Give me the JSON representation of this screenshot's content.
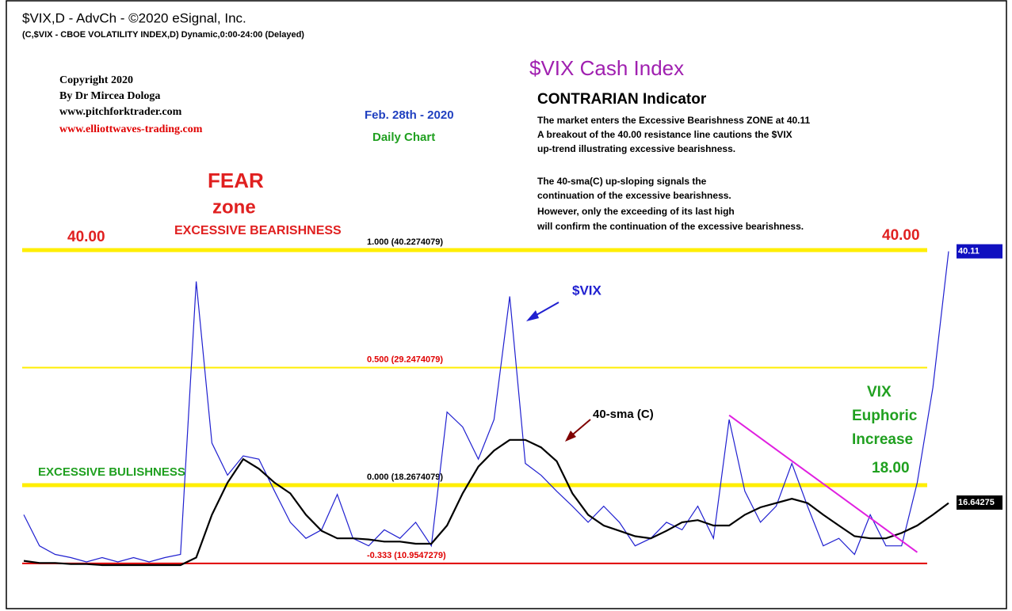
{
  "chart_data": {
    "type": "line",
    "header": "$VIX,D - AdvCh - ©2020 eSignal, Inc.",
    "subheader": "(C,$VIX - CBOE VOLATILITY INDEX,D) Dynamic,0:00-24:00 (Delayed)",
    "copyright": [
      "Copyright 2020",
      "By Dr Mircea Dologa",
      "www.pitchforktrader.com",
      "www.elliottwaves-trading.com"
    ],
    "title": "$VIX Cash Index",
    "subtitle": "CONTRARIAN Indicator",
    "date": "Feb. 28th - 2020",
    "timeframe": "Daily Chart",
    "notes": [
      "The market enters the Excessive Bearishness ZONE at 40.11",
      "A breakout of the 40.00 resistance line cautions the $VIX",
      "up-trend illustrating excessive bearishness.",
      "The 40-sma(C) up-sloping signals the",
      "continuation of the excessive bearishness.",
      "However, only the exceeding of its last high",
      "will confirm the continuation of the excessive bearishness."
    ],
    "annotations": {
      "fear": "FEAR",
      "zone": "zone",
      "bear": "EXCESSIVE BEARISHNESS",
      "level_left": "40.00",
      "level_right": "40.00",
      "vix": "$VIX",
      "sma": "40-sma (C)",
      "euph1": "VIX",
      "euph2": "Euphoric",
      "euph3": "Increase",
      "level18": "18.00",
      "bull": "EXCESSIVE BULISHNESS"
    },
    "ylim": [
      9.5,
      42
    ],
    "levels": [
      {
        "value": 40.2274079,
        "label": "1.000 (40.2274079)",
        "color": "#ffee00",
        "label_color": "#000000",
        "width": 5
      },
      {
        "value": 29.2474079,
        "label": "0.500 (29.2474079)",
        "color": "#ffee00",
        "label_color": "#e00000",
        "width": 2
      },
      {
        "value": 18.2674079,
        "label": "0.000 (18.2674079)",
        "color": "#ffee00",
        "label_color": "#000000",
        "width": 5
      },
      {
        "value": 10.9547279,
        "label": "-0.333 (10.9547279)",
        "color": "#e00000",
        "label_color": "#e00000",
        "width": 2
      }
    ],
    "series": [
      {
        "name": "$VIX",
        "color": "#2020d0",
        "values": [
          15.5,
          12.6,
          11.8,
          11.5,
          11.1,
          11.5,
          11.1,
          11.5,
          11.1,
          11.5,
          11.8,
          37.3,
          22.2,
          19.2,
          21.0,
          20.7,
          17.7,
          14.8,
          13.3,
          14.1,
          17.4,
          13.3,
          12.6,
          14.1,
          13.3,
          14.8,
          12.6,
          25.1,
          23.7,
          20.7,
          24.4,
          35.9,
          20.3,
          19.2,
          17.7,
          16.3,
          14.8,
          16.3,
          14.8,
          12.6,
          13.3,
          14.8,
          14.1,
          16.3,
          13.3,
          24.4,
          17.7,
          14.8,
          16.3,
          20.3,
          16.3,
          12.6,
          13.3,
          11.8,
          15.5,
          12.6,
          12.6,
          18.5,
          27.4,
          40.11
        ]
      },
      {
        "name": "40-sma (C)",
        "color": "#000000",
        "values": [
          11.2,
          11.0,
          11.0,
          10.9,
          10.9,
          10.8,
          10.8,
          10.8,
          10.8,
          10.8,
          10.8,
          11.5,
          15.5,
          18.5,
          20.7,
          19.8,
          18.5,
          17.5,
          15.5,
          14.0,
          13.3,
          13.3,
          13.2,
          13.0,
          13.0,
          12.8,
          12.8,
          14.5,
          17.5,
          20.0,
          21.5,
          22.5,
          22.5,
          21.8,
          20.5,
          17.5,
          15.5,
          14.5,
          14.0,
          13.5,
          13.3,
          14.0,
          14.8,
          15.0,
          14.5,
          14.5,
          15.5,
          16.2,
          16.6,
          17.0,
          16.6,
          15.5,
          14.5,
          13.5,
          13.3,
          13.3,
          13.8,
          14.5,
          15.5,
          16.6
        ]
      }
    ],
    "last_values": [
      {
        "value": 40.11,
        "label": "40.11",
        "color": "#1010c0"
      },
      {
        "value": 16.64275,
        "label": "16.64275",
        "color": "#000000"
      }
    ],
    "trendline": {
      "from_index": 45,
      "from_value": 24.8,
      "to_index": 57,
      "to_value": 12.0,
      "color": "#e020e0"
    }
  }
}
